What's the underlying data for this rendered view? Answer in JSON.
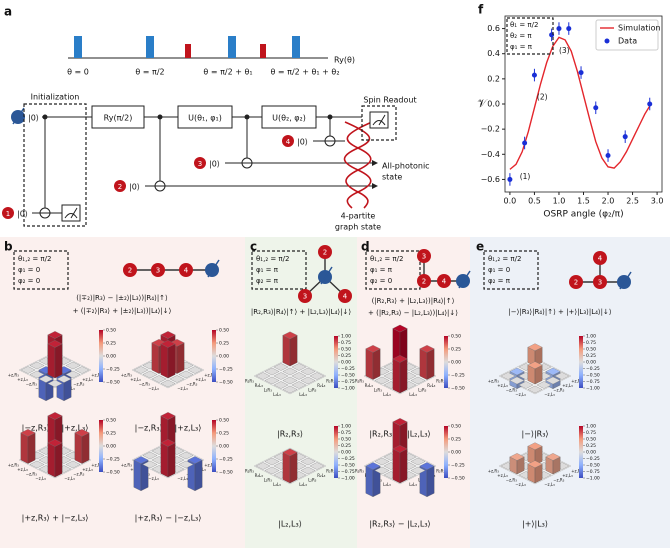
{
  "panel_a": {
    "label": "a",
    "pulse_axis": "Ry(θ)",
    "pulse_labels": [
      "θ = 0",
      "θ = π/2",
      "θ = π/2 + θ₁",
      "θ = π/2 + θ₁ + θ₂"
    ],
    "ket": "|0⟩",
    "initialization": "Initialization",
    "readout": "Spin Readout",
    "gates": [
      "Ry(π/2)",
      "U(θ₁, φ₁)",
      "U(θ₂, φ₂)"
    ],
    "photons": [
      "1",
      "2",
      "3",
      "4"
    ],
    "photonic_state": [
      "All-photonic",
      "state"
    ],
    "graph_state": [
      "4-partite",
      "graph state"
    ]
  },
  "panels": [
    {
      "label": "b",
      "params": [
        "θ₁,₂ = π/2",
        "φ₁ = 0",
        "φ₂ = 0"
      ],
      "nodes": [
        "2",
        "3",
        "4"
      ],
      "state": [
        "(|∓₂⟩|R₃⟩ − |±₂⟩|L₃⟩)|R₄⟩|↑⟩",
        "+ (|∓₂⟩|R₃⟩ + |±₂⟩|L₃⟩)|L₄⟩|↓⟩"
      ],
      "basis": [
        "+z,R₃",
        "+z,L₃",
        "−z,R₃",
        "−z,L₃"
      ],
      "colorbar": [
        {
          "value": 0.5,
          "label": "0.50"
        },
        {
          "value": 0.25,
          "label": "0.25"
        },
        {
          "value": 0,
          "label": "0.00"
        },
        {
          "value": -0.25,
          "label": "−0.25"
        },
        {
          "value": -0.5,
          "label": "−0.50"
        }
      ],
      "plots": [
        {
          "caption": "|−z,R₃⟩ − |+z,L₃⟩",
          "rho": [
            [
              0,
              0,
              0,
              0
            ],
            [
              0,
              0.45,
              -0.4,
              0
            ],
            [
              0,
              -0.4,
              0.45,
              0
            ],
            [
              0,
              0,
              0,
              0
            ]
          ]
        },
        {
          "caption": "|−z,R₃⟩ + |+z,L₃⟩",
          "rho": [
            [
              0,
              0,
              0,
              0
            ],
            [
              0,
              0.45,
              0.4,
              0
            ],
            [
              0,
              0.4,
              0.45,
              0
            ],
            [
              0,
              0,
              0,
              0
            ]
          ]
        },
        {
          "caption": "|+z,R₃⟩ + |−z,L₃⟩",
          "rho": [
            [
              0.45,
              0,
              0,
              0.4
            ],
            [
              0,
              0,
              0,
              0
            ],
            [
              0,
              0,
              0,
              0
            ],
            [
              0.4,
              0,
              0,
              0.45
            ]
          ]
        },
        {
          "caption": "|+z,R₃⟩ − |−z,L₃⟩",
          "rho": [
            [
              0.45,
              0,
              0,
              -0.4
            ],
            [
              0,
              0,
              0,
              0
            ],
            [
              0,
              0,
              0,
              0
            ],
            [
              -0.4,
              0,
              0,
              0.45
            ]
          ]
        }
      ]
    },
    {
      "label": "c",
      "params": [
        "θ₁,₂ = π/2",
        "φ₁ = π",
        "φ₂ = π"
      ],
      "nodes": [
        "2",
        "3",
        "4"
      ],
      "state": [
        "|R₂,R₃⟩|R₄⟩|↑⟩ + |L₂,L₃⟩|L₄⟩|↓⟩"
      ],
      "basis": [
        "R₂R₃",
        "R₂L₃",
        "L₂R₃",
        "L₂L₃"
      ],
      "colorbar": [
        {
          "value": 1,
          "label": "1.00"
        },
        {
          "value": 0.75,
          "label": "0.75"
        },
        {
          "value": 0.5,
          "label": "0.50"
        },
        {
          "value": 0.25,
          "label": "0.25"
        },
        {
          "value": 0,
          "label": "0.00"
        },
        {
          "value": -0.25,
          "label": "−0.25"
        },
        {
          "value": -0.5,
          "label": "−0.50"
        },
        {
          "value": -0.75,
          "label": "−0.75"
        },
        {
          "value": -1,
          "label": "−1.00"
        }
      ],
      "plots": [
        {
          "caption": "|R₂,R₃⟩",
          "rho": [
            [
              0.8,
              0,
              0,
              0
            ],
            [
              0,
              0,
              0,
              0
            ],
            [
              0,
              0,
              0,
              0
            ],
            [
              0,
              0,
              0,
              0
            ]
          ]
        },
        {
          "caption": "|L₂,L₃⟩",
          "rho": [
            [
              0,
              0,
              0,
              0
            ],
            [
              0,
              0,
              0,
              0
            ],
            [
              0,
              0,
              0,
              0
            ],
            [
              0,
              0,
              0,
              0.8
            ]
          ]
        }
      ]
    },
    {
      "label": "d",
      "params": [
        "θ₁,₂ = π/2",
        "φ₁ = π",
        "φ₂ = 0"
      ],
      "nodes": [
        "2",
        "3",
        "4"
      ],
      "state": [
        "(|R₂,R₃⟩ + |L₂,L₃⟩)|R₄⟩|↑⟩",
        "+ (|R₂,R₃⟩ − |L₂,L₃⟩)|L₄⟩|↓⟩"
      ],
      "basis": [
        "R₂R₃",
        "R₂L₃",
        "L₂R₃",
        "L₂L₃"
      ],
      "colorbar": [
        {
          "value": 0.5,
          "label": "0.50"
        },
        {
          "value": 0.25,
          "label": "0.25"
        },
        {
          "value": 0,
          "label": "0.00"
        },
        {
          "value": -0.25,
          "label": "−0.25"
        },
        {
          "value": -0.5,
          "label": "−0.50"
        }
      ],
      "plots": [
        {
          "caption": "|R₂,R₃⟩ + |L₂,L₃⟩",
          "rho": [
            [
              0.5,
              0,
              0,
              0.4
            ],
            [
              0,
              0,
              0,
              0
            ],
            [
              0,
              0,
              0,
              0
            ],
            [
              0.4,
              0,
              0,
              0.45
            ]
          ]
        },
        {
          "caption": "|R₂,R₃⟩ − |L₂,L₃⟩",
          "rho": [
            [
              0.45,
              0,
              0,
              -0.4
            ],
            [
              0,
              0,
              0,
              0
            ],
            [
              0,
              0,
              0,
              0
            ],
            [
              -0.4,
              0,
              0,
              0.45
            ]
          ]
        }
      ]
    },
    {
      "label": "e",
      "params": [
        "θ₁,₂ = π/2",
        "φ₁ = 0",
        "φ₂ = π"
      ],
      "nodes": [
        "2",
        "3",
        "4"
      ],
      "state": [
        "|−⟩|R₃⟩|R₄⟩|↑⟩ + |+⟩|L₃⟩|L₄⟩|↓⟩"
      ],
      "basis": [
        "+z,R₃",
        "+z,L₃",
        "−z,R₃",
        "−z,L₃"
      ],
      "colorbar": [
        {
          "value": 1,
          "label": "1.00"
        },
        {
          "value": 0.75,
          "label": "0.75"
        },
        {
          "value": 0.5,
          "label": "0.50"
        },
        {
          "value": 0.25,
          "label": "0.25"
        },
        {
          "value": 0,
          "label": "0.00"
        },
        {
          "value": -0.25,
          "label": "−0.25"
        },
        {
          "value": -0.5,
          "label": "−0.50"
        },
        {
          "value": -0.75,
          "label": "−0.75"
        },
        {
          "value": -1,
          "label": "−1.00"
        }
      ],
      "plots": [
        {
          "caption": "|−⟩|R₃⟩",
          "rho": [
            [
              0.45,
              0,
              -0.4,
              0
            ],
            [
              0,
              0,
              0,
              0
            ],
            [
              -0.4,
              0,
              0.45,
              0
            ],
            [
              0,
              0,
              0,
              0
            ]
          ]
        },
        {
          "caption": "|+⟩|L₃⟩",
          "rho": [
            [
              0,
              0,
              0,
              0
            ],
            [
              0,
              0.45,
              0,
              0.4
            ],
            [
              0,
              0,
              0,
              0
            ],
            [
              0,
              0.4,
              0,
              0.45
            ]
          ]
        }
      ]
    }
  ],
  "chart_data": {
    "type": "line",
    "label": "f",
    "xlabel": "OSRP angle (φ₂/π)",
    "ylabel": "𝒱",
    "xlim": [
      -0.1,
      3.1
    ],
    "ylim": [
      -0.7,
      0.7
    ],
    "xticks": [
      {
        "value": 0,
        "label": "0.0"
      },
      {
        "value": 0.5,
        "label": "0.5"
      },
      {
        "value": 1,
        "label": "1.0"
      },
      {
        "value": 1.5,
        "label": "1.5"
      },
      {
        "value": 2,
        "label": "2.0"
      },
      {
        "value": 2.5,
        "label": "2.5"
      },
      {
        "value": 3,
        "label": "3.0"
      }
    ],
    "yticks": [
      {
        "value": -0.6,
        "label": "−0.6"
      },
      {
        "value": -0.4,
        "label": "−0.4"
      },
      {
        "value": -0.2,
        "label": "−0.2"
      },
      {
        "value": 0,
        "label": "0.0"
      },
      {
        "value": 0.2,
        "label": "0.2"
      },
      {
        "value": 0.4,
        "label": "0.4"
      },
      {
        "value": 0.6,
        "label": "0.6"
      }
    ],
    "legend": "upper right",
    "params": [
      "θ₁ = π/2",
      "θ₂ = π",
      "φ₁ = π"
    ],
    "annotations": [
      {
        "text": "(1)",
        "x": 0.2,
        "y": -0.58
      },
      {
        "text": "(2)",
        "x": 0.55,
        "y": 0.05
      },
      {
        "text": "(3)",
        "x": 1.0,
        "y": 0.42
      }
    ],
    "series": [
      {
        "name": "Simulation",
        "type": "line",
        "color": "#e4262c",
        "x": [
          0,
          0.125,
          0.25,
          0.375,
          0.5,
          0.625,
          0.75,
          0.875,
          1,
          1.125,
          1.25,
          1.375,
          1.5,
          1.625,
          1.75,
          1.875,
          2,
          2.125,
          2.25,
          2.375,
          2.5,
          2.625,
          2.75,
          2.875
        ],
        "values": [
          -0.52,
          -0.48,
          -0.38,
          -0.22,
          -0.03,
          0.16,
          0.33,
          0.46,
          0.53,
          0.51,
          0.42,
          0.26,
          0.07,
          -0.12,
          -0.3,
          -0.43,
          -0.5,
          -0.51,
          -0.46,
          -0.38,
          -0.28,
          -0.18,
          -0.08,
          0.0
        ]
      },
      {
        "name": "Data",
        "type": "errorbar",
        "color": "#1a2fd6",
        "x": [
          0,
          0.3,
          0.5,
          0.85,
          1,
          1.2,
          1.45,
          1.75,
          2,
          2.35,
          2.85
        ],
        "values": [
          -0.6,
          -0.31,
          0.23,
          0.55,
          0.6,
          0.6,
          0.25,
          -0.03,
          -0.41,
          -0.26,
          0.0
        ],
        "errors": [
          0.05,
          0.05,
          0.05,
          0.05,
          0.05,
          0.05,
          0.05,
          0.05,
          0.05,
          0.05,
          0.05
        ]
      }
    ]
  }
}
